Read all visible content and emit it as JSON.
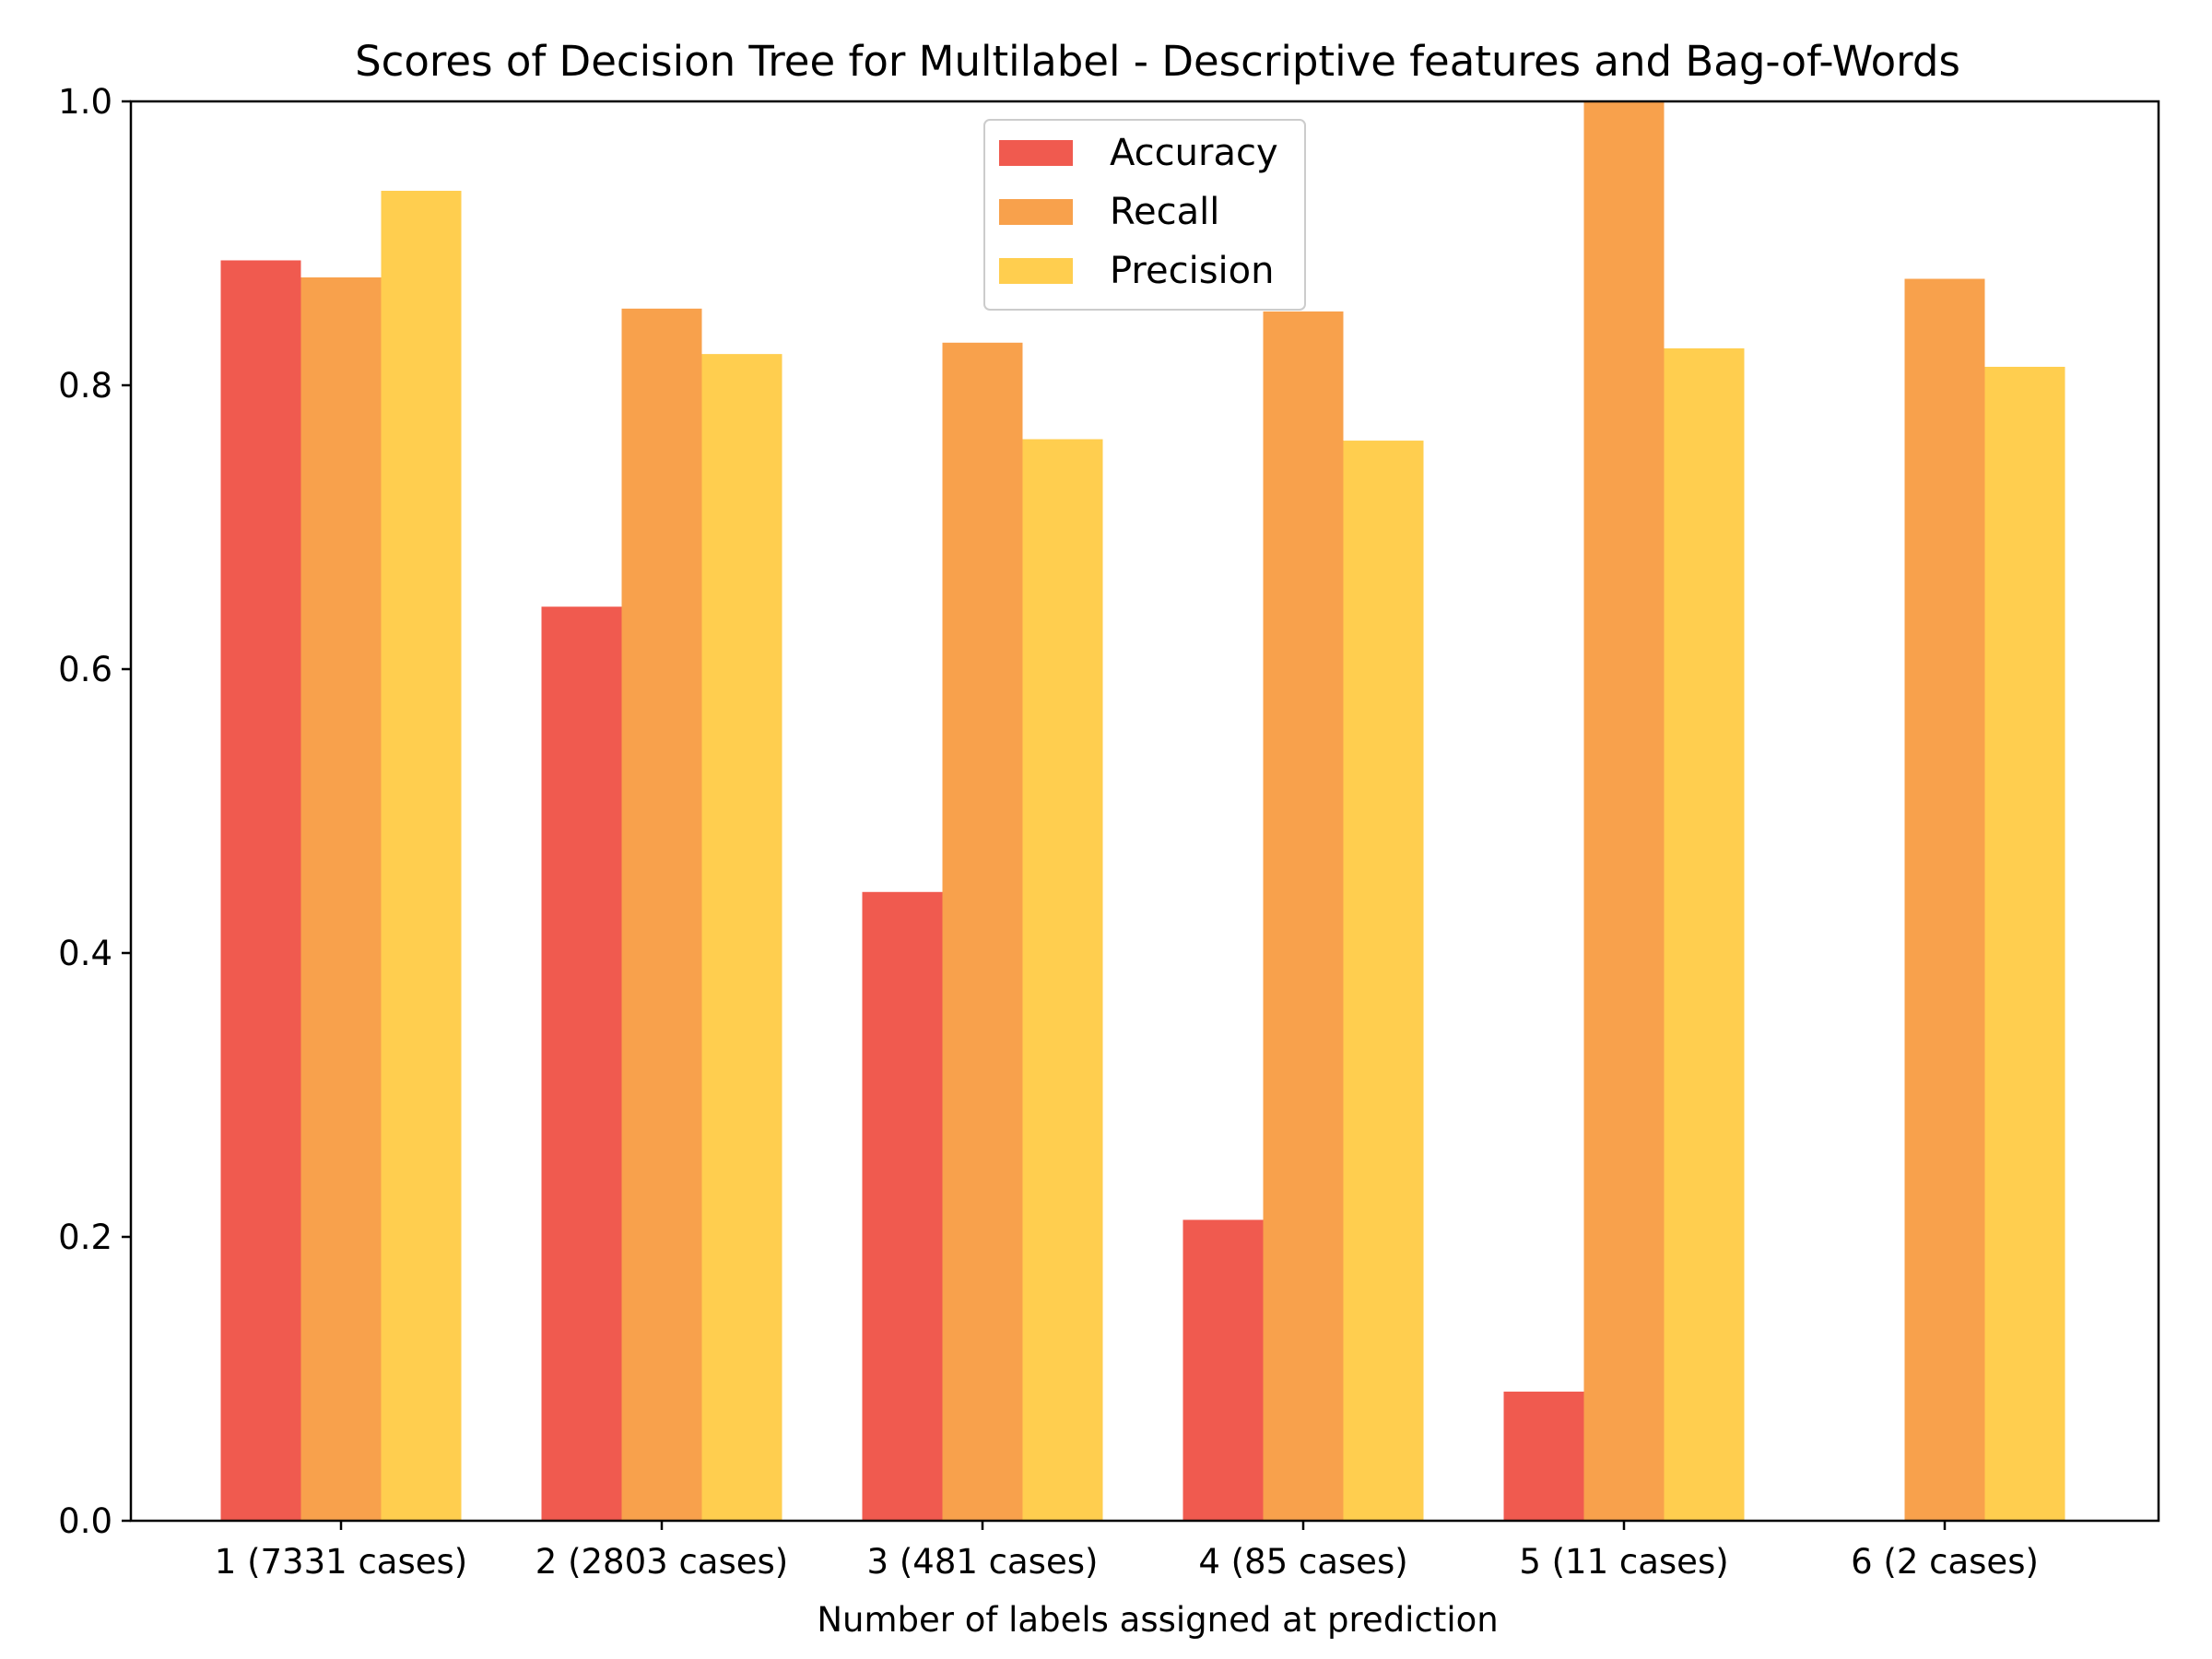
{
  "chart_data": {
    "type": "bar",
    "title": "Scores of Decision Tree for Multilabel - Descriptive features and Bag-of-Words",
    "xlabel": "Number of labels assigned at prediction",
    "ylabel": "",
    "ylim": [
      0,
      1.0
    ],
    "yticks": [
      "0.0",
      "0.2",
      "0.4",
      "0.6",
      "0.8",
      "1.0"
    ],
    "categories": [
      "1 (7331 cases)",
      "2 (2803 cases)",
      "3 (481 cases)",
      "4 (85 cases)",
      "5 (11 cases)",
      "6 (2 cases)"
    ],
    "series": [
      {
        "name": "Accuracy",
        "color": "#f05a4f",
        "values": [
          0.888,
          0.644,
          0.443,
          0.212,
          0.091,
          0.0
        ]
      },
      {
        "name": "Recall",
        "color": "#f8a14c",
        "values": [
          0.876,
          0.854,
          0.83,
          0.852,
          1.0,
          0.875
        ]
      },
      {
        "name": "Precision",
        "color": "#ffce4f",
        "values": [
          0.937,
          0.822,
          0.762,
          0.761,
          0.826,
          0.813
        ]
      }
    ],
    "legend_position": "upper-center",
    "grid": false
  }
}
